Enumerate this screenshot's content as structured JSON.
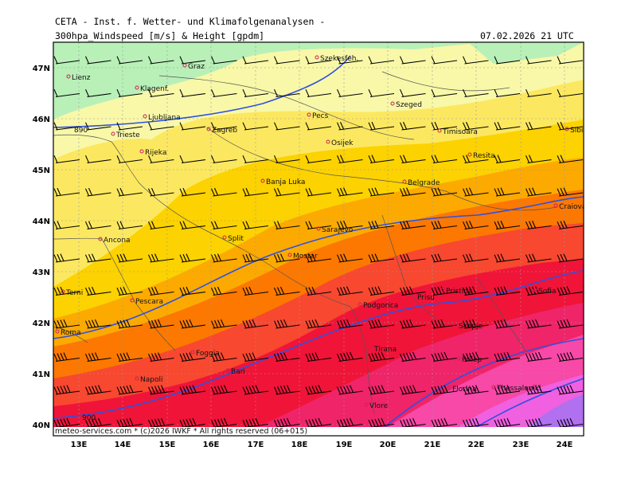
{
  "header": {
    "institute": "CETA - Inst. f. Wetter- und Klimafolgenanalysen -",
    "product": "300hpa_Windspeed [m/s] & Height [gpdm]",
    "datetime": "07.02.2026 21 UTC"
  },
  "footer": {
    "copyright": "meteo-services.com * (c)2026 IWKF * All rights reserved (06+015)"
  },
  "axes": {
    "lon_labels": [
      "13E",
      "14E",
      "15E",
      "16E",
      "17E",
      "18E",
      "19E",
      "20E",
      "21E",
      "22E",
      "23E",
      "24E"
    ],
    "lat_labels": [
      "47N",
      "46N",
      "45N",
      "44N",
      "43N",
      "42N",
      "41N",
      "40N"
    ]
  },
  "contours": [
    {
      "label": "890"
    },
    {
      "label": "900"
    }
  ],
  "cities": [
    {
      "name": "Lienz"
    },
    {
      "name": "Graz"
    },
    {
      "name": "Szekesfeh."
    },
    {
      "name": "Klagenf."
    },
    {
      "name": "Ljubljana"
    },
    {
      "name": "Pecs"
    },
    {
      "name": "Szeged"
    },
    {
      "name": "Trieste"
    },
    {
      "name": "Zagreb"
    },
    {
      "name": "Timisoara"
    },
    {
      "name": "Sibiu"
    },
    {
      "name": "Osijek"
    },
    {
      "name": "Rijeka"
    },
    {
      "name": "Resita"
    },
    {
      "name": "Banja Luka"
    },
    {
      "name": "Belgrade"
    },
    {
      "name": "Craiova"
    },
    {
      "name": "Sarajevo"
    },
    {
      "name": "Ancona"
    },
    {
      "name": "Split"
    },
    {
      "name": "Mostar"
    },
    {
      "name": "Terni"
    },
    {
      "name": "Pescara"
    },
    {
      "name": "Podgorica"
    },
    {
      "name": "Prisu"
    },
    {
      "name": "Pristina"
    },
    {
      "name": "Sofia"
    },
    {
      "name": "Roma"
    },
    {
      "name": "Skopje"
    },
    {
      "name": "Foggia"
    },
    {
      "name": "Tirana"
    },
    {
      "name": "Bari"
    },
    {
      "name": "Prilep"
    },
    {
      "name": "Napoli"
    },
    {
      "name": "Florina"
    },
    {
      "name": "Thessaloniki"
    },
    {
      "name": "Vlore"
    }
  ],
  "colors": {
    "lightgreen": "#b8f0b8",
    "lightyellow": "#f8f8a8",
    "yellow": "#fce860",
    "gold": "#fcd200",
    "amber": "#fcaa00",
    "orange": "#fc7800",
    "redorange": "#f84830",
    "red": "#f01438",
    "crimson": "#f02468",
    "pink": "#f848a8",
    "magenta": "#f060e0",
    "violet": "#b070f0",
    "contour": "#3050e0",
    "coast": "#555555",
    "grid": "#aaaaaa"
  }
}
